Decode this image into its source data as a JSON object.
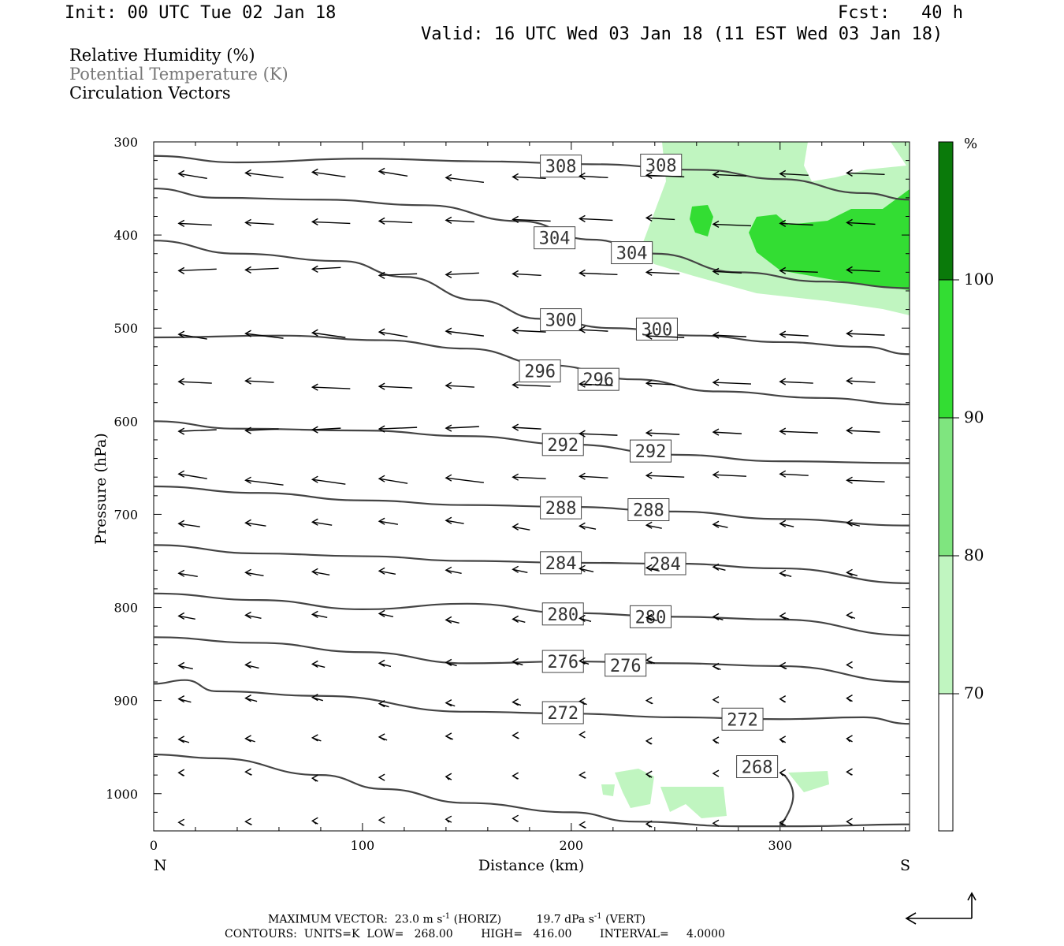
{
  "header": {
    "init": "Init: 00 UTC Tue 02 Jan 18",
    "fcst_label": "Fcst:",
    "fcst_value": "40 h",
    "valid": "Valid: 16 UTC Wed 03 Jan 18 (11 EST Wed 03 Jan 18)"
  },
  "legend": {
    "rh": "Relative Humidity (%)",
    "theta": "Potential Temperature (K)",
    "vectors": "Circulation Vectors"
  },
  "colorbar": {
    "unit": "%",
    "levels": [
      "70",
      "80",
      "90",
      "100"
    ],
    "colors": [
      "#ffffff",
      "#c0f5c0",
      "#7fe57f",
      "#33dd33",
      "#10b010",
      "#0a7a0a"
    ]
  },
  "footer": {
    "line1_a": "MAXIMUM VECTOR:  23.0 m s",
    "line1_b": " (HORIZ)",
    "line1_c": "19.7 dPa s",
    "line1_d": " (VERT)",
    "sup": "-1",
    "line2": "CONTOURS:  UNITS=K  LOW=   268.00        HIGH=   416.00        INTERVAL=     4.0000"
  },
  "chart_data": {
    "type": "cross-section",
    "xlabel": "Distance (km)",
    "ylabel": "Pressure (hPa)",
    "xlim": [
      0,
      362
    ],
    "ylim": [
      1040,
      300
    ],
    "x_ticks": [
      "0",
      "100",
      "200",
      "300"
    ],
    "y_ticks": [
      "300",
      "400",
      "500",
      "600",
      "700",
      "800",
      "900",
      "1000"
    ],
    "x_end_labels": {
      "left": "N",
      "right": "S"
    },
    "theta_contours": [
      {
        "level": 308,
        "labels": [
          [
            195,
            326
          ],
          [
            243,
            325
          ]
        ],
        "points": [
          [
            0,
            315
          ],
          [
            40,
            322
          ],
          [
            100,
            318
          ],
          [
            160,
            321
          ],
          [
            210,
            324
          ],
          [
            262,
            330
          ],
          [
            300,
            340
          ],
          [
            340,
            355
          ],
          [
            362,
            362
          ]
        ]
      },
      {
        "level": 304,
        "labels": [
          [
            192,
            403
          ],
          [
            229,
            419
          ]
        ],
        "points": [
          [
            0,
            350
          ],
          [
            30,
            360
          ],
          [
            80,
            362
          ],
          [
            130,
            368
          ],
          [
            175,
            385
          ],
          [
            210,
            405
          ],
          [
            240,
            420
          ],
          [
            280,
            440
          ],
          [
            320,
            450
          ],
          [
            362,
            457
          ]
        ]
      },
      {
        "level": 300,
        "labels": [
          [
            195,
            491
          ],
          [
            241,
            501
          ]
        ],
        "points": [
          [
            0,
            406
          ],
          [
            40,
            420
          ],
          [
            90,
            428
          ],
          [
            120,
            445
          ],
          [
            155,
            470
          ],
          [
            185,
            490
          ],
          [
            220,
            500
          ],
          [
            260,
            508
          ],
          [
            300,
            515
          ],
          [
            340,
            520
          ],
          [
            362,
            528
          ]
        ]
      },
      {
        "level": 296,
        "labels": [
          [
            185,
            546
          ],
          [
            213,
            555
          ]
        ],
        "points": [
          [
            0,
            510
          ],
          [
            60,
            508
          ],
          [
            110,
            513
          ],
          [
            150,
            522
          ],
          [
            190,
            540
          ],
          [
            230,
            555
          ],
          [
            270,
            568
          ],
          [
            320,
            575
          ],
          [
            362,
            582
          ]
        ]
      },
      {
        "level": 292,
        "labels": [
          [
            196,
            625
          ],
          [
            238,
            632
          ]
        ],
        "points": [
          [
            0,
            600
          ],
          [
            40,
            608
          ],
          [
            100,
            610
          ],
          [
            150,
            616
          ],
          [
            200,
            625
          ],
          [
            250,
            636
          ],
          [
            300,
            643
          ],
          [
            362,
            645
          ]
        ]
      },
      {
        "level": 288,
        "labels": [
          [
            195,
            693
          ],
          [
            237,
            695
          ]
        ],
        "points": [
          [
            0,
            670
          ],
          [
            50,
            677
          ],
          [
            100,
            685
          ],
          [
            150,
            690
          ],
          [
            200,
            692
          ],
          [
            250,
            697
          ],
          [
            300,
            705
          ],
          [
            362,
            712
          ]
        ]
      },
      {
        "level": 284,
        "labels": [
          [
            195,
            752
          ],
          [
            245,
            753
          ]
        ],
        "points": [
          [
            0,
            733
          ],
          [
            50,
            742
          ],
          [
            100,
            745
          ],
          [
            150,
            750
          ],
          [
            200,
            752
          ],
          [
            250,
            753
          ],
          [
            300,
            758
          ],
          [
            362,
            774
          ]
        ]
      },
      {
        "level": 280,
        "labels": [
          [
            196,
            807
          ],
          [
            238,
            810
          ]
        ],
        "points": [
          [
            0,
            785
          ],
          [
            50,
            792
          ],
          [
            100,
            802
          ],
          [
            150,
            796
          ],
          [
            200,
            806
          ],
          [
            250,
            810
          ],
          [
            300,
            813
          ],
          [
            362,
            830
          ]
        ]
      },
      {
        "level": 276,
        "labels": [
          [
            196,
            858
          ],
          [
            226,
            862
          ]
        ],
        "points": [
          [
            0,
            832
          ],
          [
            50,
            838
          ],
          [
            100,
            848
          ],
          [
            150,
            860
          ],
          [
            200,
            858
          ],
          [
            250,
            860
          ],
          [
            300,
            863
          ],
          [
            362,
            880
          ]
        ]
      },
      {
        "level": 272,
        "labels": [
          [
            196,
            913
          ],
          [
            282,
            920
          ]
        ],
        "points": [
          [
            0,
            882
          ],
          [
            15,
            878
          ],
          [
            30,
            890
          ],
          [
            80,
            895
          ],
          [
            150,
            912
          ],
          [
            200,
            914
          ],
          [
            250,
            918
          ],
          [
            300,
            920
          ],
          [
            340,
            918
          ],
          [
            362,
            925
          ]
        ]
      },
      {
        "level": 268,
        "labels": [
          [
            289,
            971
          ]
        ],
        "points": [
          [
            0,
            958
          ],
          [
            30,
            962
          ],
          [
            80,
            980
          ],
          [
            110,
            995
          ],
          [
            150,
            1010
          ],
          [
            200,
            1020
          ],
          [
            230,
            1030
          ],
          [
            280,
            1035
          ],
          [
            310,
            1035
          ],
          [
            362,
            1033
          ]
        ]
      }
    ]
  }
}
